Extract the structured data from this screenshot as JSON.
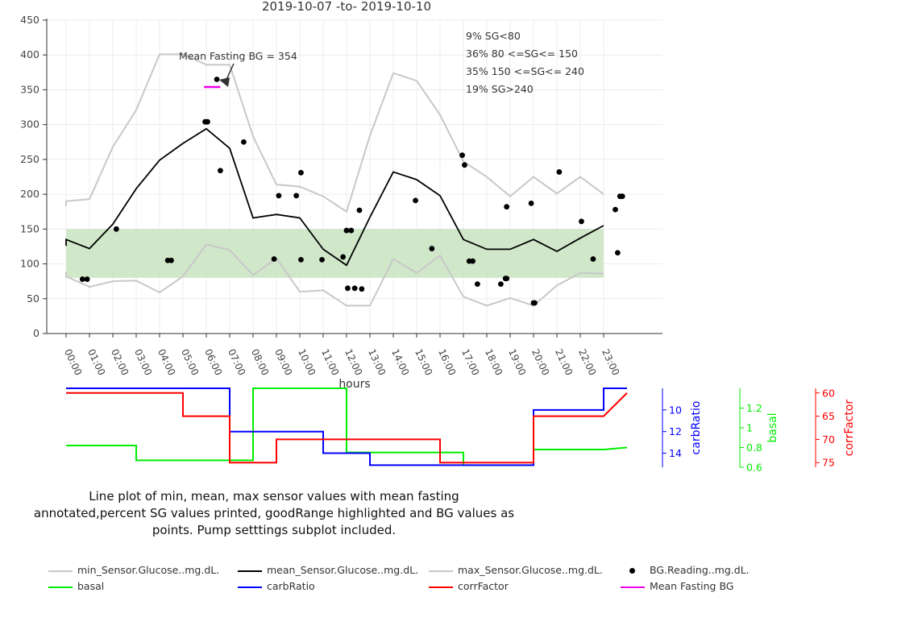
{
  "chart_data": [
    {
      "type": "line",
      "title": "2019-10-07 -to- 2019-10-10",
      "xlabel": "hours",
      "ylabel": "",
      "ylim": [
        0,
        450
      ],
      "yticks": [
        0,
        50,
        100,
        150,
        200,
        250,
        300,
        350,
        400,
        450
      ],
      "x_ticks": [
        "00:00",
        "01:00",
        "02:00",
        "03:00",
        "04:00",
        "05:00",
        "06:00",
        "07:00",
        "08:00",
        "09:00",
        "10:00",
        "11:00",
        "12:00",
        "13:00",
        "14:00",
        "15:00",
        "16:00",
        "17:00",
        "18:00",
        "19:00",
        "20:00",
        "21:00",
        "22:00",
        "23:00"
      ],
      "grid": true,
      "good_range": {
        "low": 80,
        "high": 150,
        "color": "#cde6c6"
      },
      "series": [
        {
          "name": "min_Sensor.Glucose..mg.dL.",
          "color": "#c8c8c8",
          "x": [
            0,
            0,
            1,
            2,
            3,
            4,
            5,
            6,
            7,
            8,
            9,
            10,
            11,
            12,
            13,
            14,
            15,
            16,
            17,
            18,
            19,
            20,
            21,
            22,
            23
          ],
          "y": [
            89,
            82,
            67,
            75,
            76,
            59,
            82,
            128,
            120,
            84,
            108,
            60,
            62,
            40,
            40,
            107,
            87,
            112,
            53,
            40,
            51,
            40,
            69,
            87,
            86
          ]
        },
        {
          "name": "mean_Sensor.Glucose..mg.dL.",
          "color": "#000000",
          "x": [
            0,
            0,
            1,
            2,
            3,
            4,
            5,
            6,
            7,
            8,
            9,
            10,
            11,
            12,
            13,
            14,
            15,
            16,
            17,
            18,
            19,
            20,
            21,
            22,
            23
          ],
          "y": [
            126,
            135,
            122,
            157,
            208,
            249,
            273,
            294,
            266,
            166,
            171,
            166,
            121,
            98,
            167,
            232,
            221,
            198,
            135,
            121,
            121,
            135,
            118,
            137,
            155
          ]
        },
        {
          "name": "max_Sensor.Glucose..mg.dL.",
          "color": "#c8c8c8",
          "x": [
            0,
            0,
            1,
            2,
            3,
            4,
            5,
            6,
            7,
            8,
            9,
            10,
            11,
            12,
            13,
            14,
            15,
            16,
            17,
            18,
            19,
            20,
            21,
            22,
            23
          ],
          "y": [
            183,
            190,
            193,
            268,
            321,
            401,
            401,
            386,
            386,
            283,
            214,
            211,
            197,
            175,
            284,
            374,
            363,
            314,
            247,
            225,
            197,
            225,
            201,
            225,
            200
          ]
        }
      ],
      "bg_readings": {
        "name": "BG.Reading..mg.dL.",
        "color": "#000000",
        "x": [
          0.7,
          0.9,
          2.15,
          4.35,
          4.5,
          5.95,
          6.05,
          6.45,
          6.6,
          7.6,
          8.9,
          9.1,
          9.85,
          10.05,
          10.05,
          10.95,
          11.85,
          12.05,
          12.0,
          12.2,
          12.35,
          12.55,
          12.65,
          14.95,
          15.65,
          16.95,
          17.05,
          17.25,
          17.4,
          17.6,
          18.6,
          18.8,
          18.85,
          18.85,
          19.9,
          20.05,
          20.0,
          21.1,
          22.05,
          22.55,
          23.5,
          23.7,
          23.6,
          23.8
        ],
        "y": [
          78,
          78,
          150,
          105,
          105,
          304,
          304,
          365,
          234,
          275,
          107,
          198,
          198,
          106,
          231,
          106,
          110,
          65,
          148,
          148,
          65,
          177,
          64,
          191,
          122,
          256,
          242,
          104,
          104,
          71,
          71,
          79,
          79,
          182,
          187,
          44,
          44,
          232,
          161,
          107,
          178,
          197,
          116,
          197
        ]
      },
      "mean_fasting": {
        "label": "Mean Fasting BG",
        "value": 354,
        "x0": 5.9,
        "x1": 6.6,
        "color": "#ee00ee"
      },
      "annotation": "Mean Fasting BG = 354",
      "sg_stats": [
        "9% SG<80",
        "36% 80 <=SG<= 150",
        "35% 150 <=SG<= 240",
        "19% SG>240"
      ]
    },
    {
      "type": "line",
      "title": "",
      "xlim": [
        0,
        24
      ],
      "series": [
        {
          "name": "carbRatio",
          "color": "#0000ff",
          "axis_label": "carbRatio",
          "yticks": [
            10,
            12,
            14
          ],
          "ylim": [
            8,
            15.3
          ],
          "reversed": true,
          "x": [
            0,
            7,
            7,
            11,
            11,
            13,
            13,
            20,
            20,
            23,
            23,
            24
          ],
          "y": [
            8,
            8,
            12,
            12,
            14,
            14,
            15.1,
            15.1,
            10,
            10,
            8,
            8
          ]
        },
        {
          "name": "basal",
          "color": "#00ee00",
          "axis_label": "basal",
          "yticks": [
            0.6,
            0.8,
            1,
            1.2
          ],
          "ylim": [
            0.6,
            1.4
          ],
          "x": [
            0,
            3,
            3,
            8,
            8,
            12,
            12,
            17,
            17,
            20,
            20,
            23,
            24
          ],
          "y": [
            0.82,
            0.82,
            0.67,
            0.67,
            1.4,
            1.4,
            0.75,
            0.75,
            0.62,
            0.62,
            0.78,
            0.78,
            0.8
          ]
        },
        {
          "name": "corrFactor",
          "color": "#ff0000",
          "axis_label": "corrFactor",
          "yticks": [
            60,
            65,
            70,
            75
          ],
          "ylim": [
            59,
            76
          ],
          "reversed": true,
          "x": [
            0,
            5,
            5,
            7,
            7,
            9,
            9,
            16,
            16,
            20,
            20,
            23,
            24
          ],
          "y": [
            60,
            60,
            65,
            65,
            75,
            75,
            70,
            70,
            75,
            75,
            65,
            65,
            60
          ]
        }
      ]
    }
  ],
  "caption": "Line plot of min, mean, max sensor values with mean fasting annotated,percent SG values printed, goodRange highlighted and BG values as points. Pump setttings subplot included.",
  "legend": [
    {
      "label": "min_Sensor.Glucose..mg.dL.",
      "color": "#c8c8c8",
      "kind": "line"
    },
    {
      "label": "mean_Sensor.Glucose..mg.dL.",
      "color": "#000000",
      "kind": "line"
    },
    {
      "label": "max_Sensor.Glucose..mg.dL.",
      "color": "#c8c8c8",
      "kind": "line"
    },
    {
      "label": "BG.Reading..mg.dL.",
      "color": "#000000",
      "kind": "dot"
    },
    {
      "label": "basal",
      "color": "#00ee00",
      "kind": "line"
    },
    {
      "label": "carbRatio",
      "color": "#0000ff",
      "kind": "line"
    },
    {
      "label": "corrFactor",
      "color": "#ff0000",
      "kind": "line"
    },
    {
      "label": "Mean Fasting BG",
      "color": "#ee00ee",
      "kind": "line"
    }
  ]
}
